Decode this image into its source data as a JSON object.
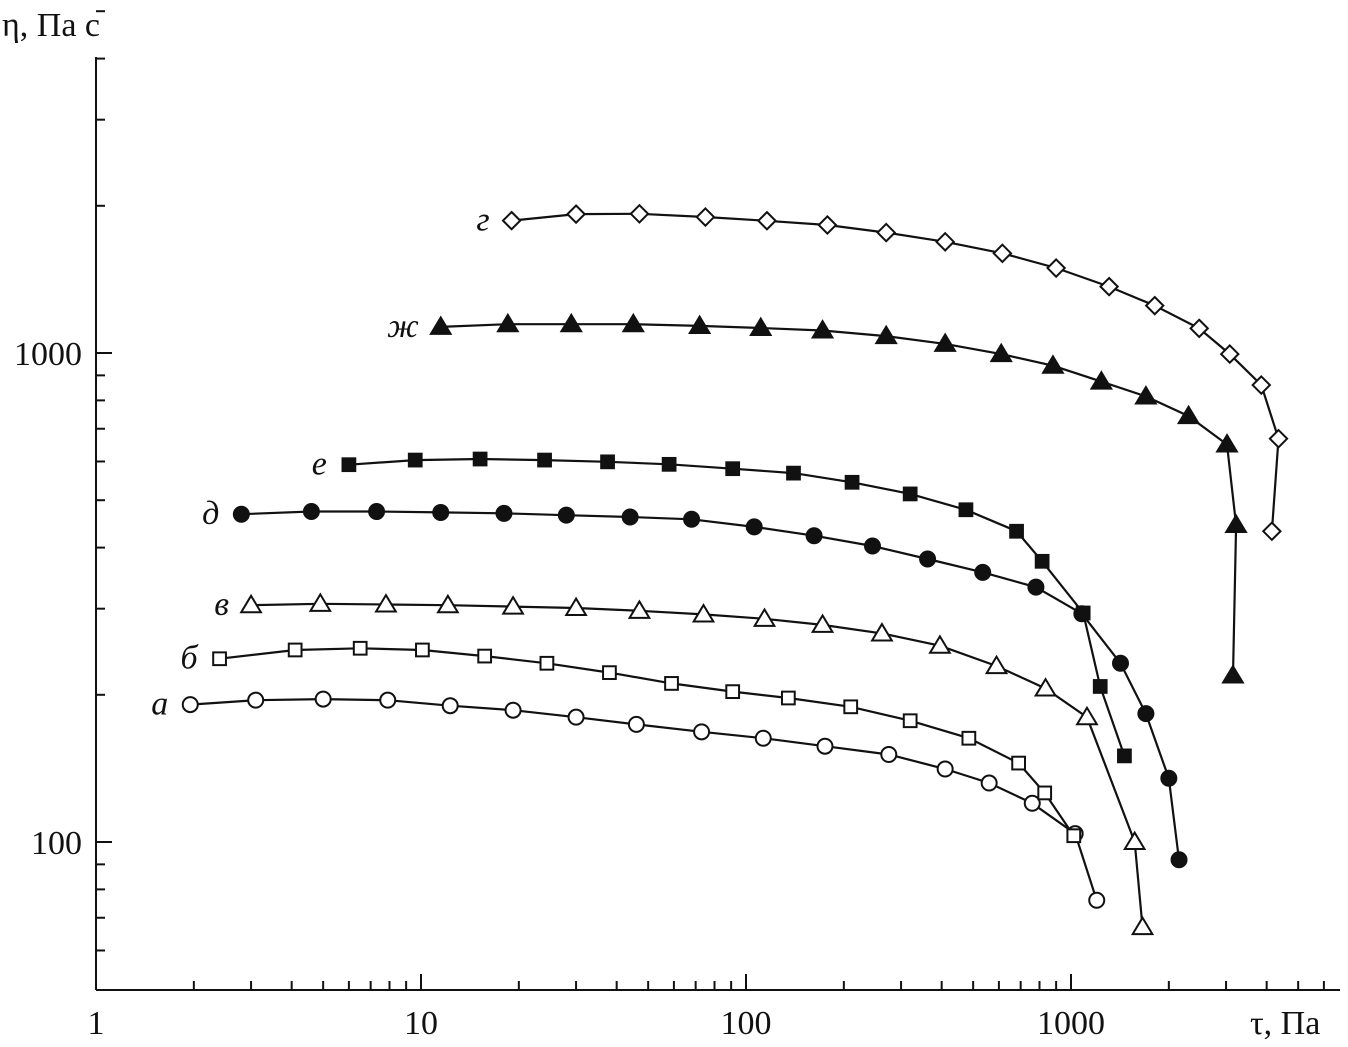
{
  "chart_data": {
    "type": "line",
    "x_scale": "log",
    "y_scale": "log",
    "xlabel": "τ, Па",
    "ylabel": "η, Па с",
    "xlim": [
      1,
      6000
    ],
    "ylim": [
      60,
      5800
    ],
    "x_ticks": [
      {
        "value": 1,
        "label": "1"
      },
      {
        "value": 10,
        "label": "10"
      },
      {
        "value": 100,
        "label": "100"
      },
      {
        "value": 1000,
        "label": "1000"
      }
    ],
    "y_ticks": [
      {
        "value": 100,
        "label": "100"
      },
      {
        "value": 1000,
        "label": "1000"
      }
    ],
    "grid": false,
    "series": [
      {
        "name": "а",
        "marker": "circle-open",
        "points": [
          [
            1.95,
            191
          ],
          [
            3.1,
            195
          ],
          [
            5,
            196
          ],
          [
            7.9,
            195
          ],
          [
            12.3,
            190
          ],
          [
            19.2,
            186
          ],
          [
            30,
            180
          ],
          [
            46,
            174
          ],
          [
            73,
            168
          ],
          [
            113,
            163
          ],
          [
            175,
            157
          ],
          [
            275,
            151
          ],
          [
            410,
            141
          ],
          [
            560,
            132
          ],
          [
            760,
            120
          ],
          [
            1030,
            104
          ],
          [
            1200,
            76
          ]
        ]
      },
      {
        "name": "б",
        "marker": "square-open",
        "points": [
          [
            2.4,
            237
          ],
          [
            4.1,
            247
          ],
          [
            6.5,
            249
          ],
          [
            10.1,
            247
          ],
          [
            15.7,
            240
          ],
          [
            24.4,
            232
          ],
          [
            38,
            222
          ],
          [
            59,
            211
          ],
          [
            91,
            203
          ],
          [
            135,
            197
          ],
          [
            210,
            189
          ],
          [
            320,
            177
          ],
          [
            485,
            163
          ],
          [
            690,
            145
          ],
          [
            830,
            126
          ],
          [
            1020,
            103
          ]
        ]
      },
      {
        "name": "в",
        "marker": "triangle-open",
        "points": [
          [
            3.0,
            305
          ],
          [
            4.9,
            307
          ],
          [
            7.8,
            306
          ],
          [
            12.1,
            305
          ],
          [
            19.2,
            303
          ],
          [
            30,
            301
          ],
          [
            47,
            297
          ],
          [
            74,
            292
          ],
          [
            114,
            286
          ],
          [
            172,
            278
          ],
          [
            262,
            267
          ],
          [
            395,
            252
          ],
          [
            590,
            229
          ],
          [
            835,
            206
          ],
          [
            1120,
            180
          ],
          [
            1570,
            100
          ],
          [
            1660,
            67
          ]
        ]
      },
      {
        "name": "д",
        "marker": "circle-filled",
        "points": [
          [
            2.8,
            468
          ],
          [
            4.6,
            474
          ],
          [
            7.3,
            474
          ],
          [
            11.5,
            472
          ],
          [
            18,
            470
          ],
          [
            28,
            466
          ],
          [
            44,
            462
          ],
          [
            68,
            457
          ],
          [
            106,
            441
          ],
          [
            162,
            423
          ],
          [
            245,
            403
          ],
          [
            362,
            379
          ],
          [
            535,
            356
          ],
          [
            780,
            332
          ],
          [
            1080,
            293
          ],
          [
            1420,
            232
          ],
          [
            1700,
            183
          ],
          [
            2000,
            135
          ],
          [
            2150,
            92
          ]
        ]
      },
      {
        "name": "е",
        "marker": "square-filled",
        "points": [
          [
            6,
            591
          ],
          [
            9.6,
            604
          ],
          [
            15.2,
            607
          ],
          [
            24,
            604
          ],
          [
            37.5,
            599
          ],
          [
            58,
            592
          ],
          [
            91,
            580
          ],
          [
            140,
            568
          ],
          [
            212,
            544
          ],
          [
            320,
            515
          ],
          [
            475,
            478
          ],
          [
            680,
            432
          ],
          [
            815,
            375
          ],
          [
            1090,
            294
          ],
          [
            1230,
            208
          ],
          [
            1460,
            150
          ]
        ]
      },
      {
        "name": "ж",
        "marker": "triangle-filled",
        "points": [
          [
            11.5,
            1131
          ],
          [
            18.5,
            1145
          ],
          [
            29,
            1145
          ],
          [
            45,
            1145
          ],
          [
            72,
            1136
          ],
          [
            111,
            1125
          ],
          [
            172,
            1112
          ],
          [
            270,
            1083
          ],
          [
            410,
            1044
          ],
          [
            610,
            995
          ],
          [
            880,
            942
          ],
          [
            1240,
            874
          ],
          [
            1700,
            815
          ],
          [
            2300,
            743
          ],
          [
            3020,
            650
          ],
          [
            3220,
            445
          ],
          [
            3150,
            219
          ]
        ]
      },
      {
        "name": "г",
        "marker": "diamond-open",
        "points": [
          [
            19,
            1865
          ],
          [
            30,
            1923
          ],
          [
            47,
            1926
          ],
          [
            75,
            1897
          ],
          [
            116,
            1864
          ],
          [
            178,
            1827
          ],
          [
            270,
            1763
          ],
          [
            410,
            1688
          ],
          [
            615,
            1599
          ],
          [
            900,
            1492
          ],
          [
            1310,
            1367
          ],
          [
            1810,
            1250
          ],
          [
            2480,
            1123
          ],
          [
            3080,
            995
          ],
          [
            3850,
            860
          ],
          [
            4350,
            668
          ],
          [
            4150,
            432
          ]
        ]
      }
    ]
  }
}
